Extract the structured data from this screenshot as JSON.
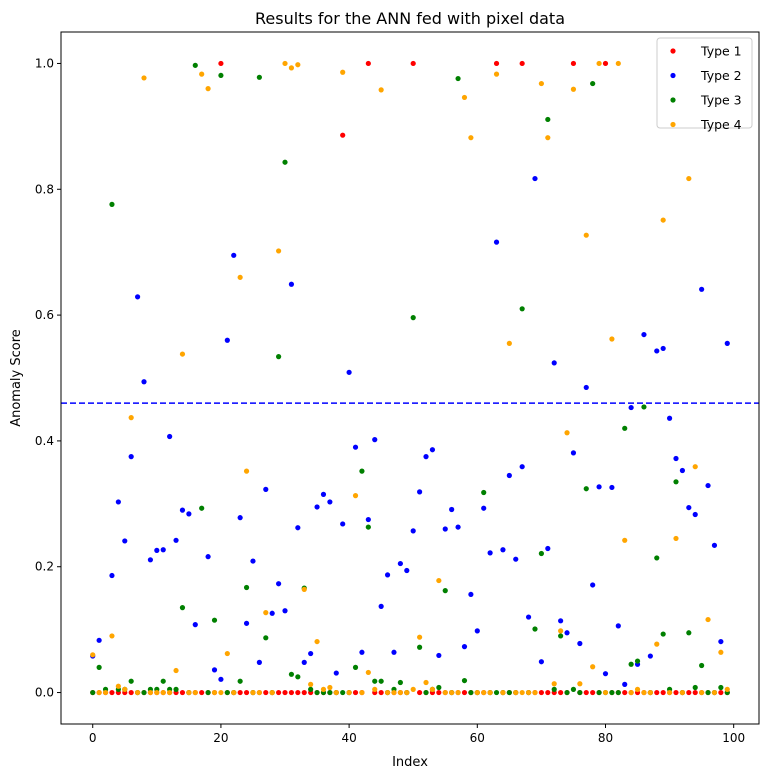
{
  "chart_data": {
    "type": "scatter",
    "title": "Results for the ANN fed with pixel data",
    "xlabel": "Index",
    "ylabel": "Anomaly Score",
    "xlim": [
      -4.95,
      103.95
    ],
    "ylim": [
      -0.05,
      1.05
    ],
    "xticks": [
      0,
      20,
      40,
      60,
      80,
      100
    ],
    "xtick_labels": [
      "0",
      "20",
      "40",
      "60",
      "80",
      "100"
    ],
    "yticks": [
      0.0,
      0.2,
      0.4,
      0.6,
      0.8,
      1.0
    ],
    "ytick_labels": [
      "0.0",
      "0.2",
      "0.4",
      "0.6",
      "0.8",
      "1.0"
    ],
    "grid": false,
    "legend_position": "top-right",
    "threshold": {
      "y": 0.46,
      "color": "#0000ff",
      "style": "dashed"
    },
    "series": [
      {
        "name": "Type 1",
        "color": "#ff0000",
        "x": [
          0,
          1,
          2,
          3,
          4,
          5,
          6,
          7,
          8,
          9,
          10,
          11,
          12,
          13,
          14,
          15,
          16,
          17,
          18,
          19,
          20,
          21,
          22,
          23,
          24,
          25,
          26,
          27,
          28,
          29,
          30,
          31,
          32,
          33,
          34,
          35,
          36,
          37,
          38,
          39,
          40,
          41,
          42,
          43,
          44,
          45,
          46,
          47,
          48,
          49,
          50,
          51,
          52,
          53,
          54,
          55,
          56,
          57,
          58,
          59,
          60,
          61,
          62,
          63,
          64,
          65,
          66,
          67,
          68,
          69,
          70,
          71,
          72,
          73,
          74,
          75,
          76,
          77,
          78,
          79,
          80,
          81,
          82,
          83,
          84,
          85,
          86,
          87,
          88,
          89,
          90,
          91,
          92,
          93,
          94,
          95,
          96,
          97,
          98,
          99
        ],
        "y": [
          0,
          0,
          0,
          0,
          0,
          0,
          0,
          0,
          0,
          0,
          0,
          0,
          0,
          0,
          0,
          0,
          0,
          0,
          0,
          0,
          1.0,
          0,
          0,
          0,
          0,
          0,
          0,
          0,
          0,
          0,
          0,
          0,
          0,
          0,
          0,
          0,
          0,
          0,
          0,
          0.886,
          0,
          0,
          0,
          1.0,
          0,
          0,
          0,
          0,
          0,
          0,
          1.0,
          0,
          0,
          0,
          0,
          0,
          0,
          0,
          0,
          0,
          0,
          0,
          0,
          1.0,
          0,
          0,
          0,
          1.0,
          0,
          0,
          0,
          0,
          0,
          0,
          0,
          1.0,
          0,
          0,
          0,
          0,
          1.0,
          0,
          0,
          0,
          0,
          0,
          0,
          0,
          0,
          0,
          0,
          0,
          0,
          0,
          0,
          0,
          0,
          0,
          0,
          0
        ]
      },
      {
        "name": "Type 2",
        "color": "#0000ff",
        "x": [
          0,
          1,
          3,
          4,
          5,
          6,
          7,
          8,
          9,
          10,
          11,
          12,
          13,
          14,
          15,
          16,
          18,
          19,
          20,
          21,
          22,
          23,
          24,
          25,
          26,
          27,
          28,
          29,
          30,
          31,
          32,
          33,
          34,
          35,
          36,
          37,
          38,
          39,
          40,
          41,
          42,
          43,
          44,
          45,
          46,
          47,
          48,
          49,
          50,
          51,
          52,
          53,
          54,
          55,
          56,
          57,
          58,
          59,
          60,
          61,
          62,
          63,
          64,
          65,
          66,
          67,
          68,
          69,
          70,
          71,
          72,
          73,
          74,
          75,
          76,
          77,
          78,
          79,
          80,
          81,
          82,
          83,
          84,
          85,
          86,
          87,
          88,
          89,
          90,
          91,
          92,
          93,
          94,
          95,
          96,
          97,
          98,
          99
        ],
        "y": [
          0.058,
          0.083,
          0.186,
          0.303,
          0.241,
          0.375,
          0.629,
          0.494,
          0.211,
          0.226,
          0.227,
          0.407,
          0.242,
          0.29,
          0.284,
          0.108,
          0.216,
          0.036,
          0.021,
          0.56,
          0.695,
          0.278,
          0.11,
          0.209,
          0.048,
          0.323,
          0.126,
          0.173,
          0.13,
          0.649,
          0.262,
          0.048,
          0.062,
          0.295,
          0.315,
          0.303,
          0.031,
          0.268,
          0.509,
          0.39,
          0.064,
          0.275,
          0.402,
          0.137,
          0.187,
          0.064,
          0.205,
          0.194,
          0.257,
          0.319,
          0.375,
          0.386,
          0.059,
          0.26,
          0.291,
          0.263,
          0.073,
          0.156,
          0.098,
          0.293,
          0.222,
          0.716,
          0.227,
          0.345,
          0.212,
          0.359,
          0.12,
          0.817,
          0.049,
          0.229,
          0.524,
          0.114,
          0.095,
          0.381,
          0.078,
          0.485,
          0.171,
          0.327,
          0.03,
          0.326,
          0.106,
          0.013,
          0.453,
          0.045,
          0.569,
          0.058,
          0.543,
          0.547,
          0.436,
          0.372,
          0.353,
          0.294,
          0.283,
          0.641,
          0.329,
          0.234,
          0.081,
          0.555
        ]
      },
      {
        "name": "Type 3",
        "color": "#008000",
        "x": [
          0,
          1,
          2,
          3,
          4,
          5,
          6,
          7,
          8,
          9,
          10,
          11,
          12,
          13,
          14,
          15,
          16,
          17,
          18,
          19,
          20,
          21,
          22,
          23,
          24,
          25,
          26,
          27,
          28,
          29,
          30,
          31,
          32,
          33,
          34,
          35,
          36,
          37,
          38,
          39,
          40,
          41,
          42,
          43,
          44,
          45,
          46,
          47,
          48,
          49,
          50,
          51,
          52,
          53,
          54,
          55,
          56,
          57,
          58,
          59,
          60,
          61,
          62,
          63,
          64,
          65,
          66,
          67,
          68,
          69,
          70,
          71,
          72,
          73,
          74,
          75,
          76,
          77,
          78,
          79,
          80,
          81,
          82,
          83,
          84,
          85,
          86,
          87,
          88,
          89,
          90,
          91,
          92,
          93,
          94,
          95,
          96,
          97,
          98,
          99
        ],
        "y": [
          0,
          0.04,
          0.005,
          0.776,
          0.005,
          0.005,
          0.018,
          0,
          0,
          0.005,
          0.005,
          0.018,
          0.005,
          0.005,
          0.135,
          0,
          0.997,
          0.293,
          0,
          0.115,
          0.981,
          0,
          0,
          0.018,
          0.167,
          0,
          0.978,
          0.087,
          0,
          0.534,
          0.843,
          0.029,
          0.025,
          0.166,
          0.005,
          0,
          0,
          0,
          0,
          0,
          0,
          0.04,
          0.352,
          0.263,
          0.018,
          0.018,
          0,
          0.005,
          0.016,
          0,
          0.596,
          0.072,
          0,
          0.005,
          0.008,
          0.162,
          0,
          0.976,
          0.019,
          0,
          0,
          0.318,
          0,
          0,
          0,
          0,
          0,
          0.61,
          0,
          0.101,
          0.221,
          0.911,
          0.005,
          0.09,
          0,
          0.005,
          0,
          0.324,
          0.968,
          0,
          0,
          0,
          0,
          0.42,
          0.045,
          0.05,
          0.454,
          0,
          0.214,
          0.093,
          0.005,
          0.335,
          0,
          0.095,
          0.008,
          0.043,
          0,
          0,
          0.008,
          0
        ]
      },
      {
        "name": "Type 4",
        "color": "#ffa500",
        "x": [
          0,
          1,
          2,
          3,
          4,
          5,
          6,
          7,
          8,
          9,
          10,
          11,
          12,
          13,
          14,
          15,
          16,
          17,
          18,
          19,
          20,
          21,
          22,
          23,
          24,
          25,
          26,
          27,
          28,
          29,
          30,
          31,
          32,
          33,
          34,
          35,
          36,
          37,
          38,
          39,
          40,
          41,
          42,
          43,
          44,
          45,
          46,
          47,
          48,
          49,
          50,
          51,
          52,
          53,
          54,
          55,
          56,
          57,
          58,
          59,
          60,
          61,
          62,
          63,
          64,
          65,
          66,
          67,
          68,
          69,
          70,
          71,
          72,
          73,
          74,
          75,
          76,
          77,
          78,
          79,
          80,
          81,
          82,
          83,
          84,
          85,
          86,
          87,
          88,
          89,
          90,
          91,
          92,
          93,
          94,
          95,
          96,
          97,
          98,
          99
        ],
        "y": [
          0.06,
          0,
          0,
          0.09,
          0.01,
          0.005,
          0.437,
          0,
          0.977,
          0,
          0,
          0,
          0,
          0.035,
          0.538,
          0,
          0,
          0.983,
          0.96,
          0,
          0,
          0.062,
          0,
          0.66,
          0.352,
          0,
          0,
          0.127,
          0,
          0.702,
          1.0,
          0.993,
          0.998,
          0.164,
          0.013,
          0.081,
          0.005,
          0.008,
          0,
          0.986,
          0,
          0.313,
          0,
          0.032,
          0.005,
          0.958,
          0,
          0,
          0,
          0,
          0.005,
          0.088,
          0.016,
          0.005,
          0.178,
          0,
          0,
          0,
          0.946,
          0.882,
          0,
          0,
          0,
          0.983,
          0,
          0.555,
          0,
          0,
          0,
          0,
          0.968,
          0.882,
          0.014,
          0.098,
          0.413,
          0.959,
          0.014,
          0.727,
          0.041,
          1.0,
          0,
          0.562,
          1.0,
          0.242,
          0,
          0.005,
          0,
          0,
          0.077,
          0.751,
          0,
          0.245,
          0,
          0.817,
          0.359,
          0,
          0.116,
          0,
          0.064,
          0.005
        ]
      }
    ]
  }
}
